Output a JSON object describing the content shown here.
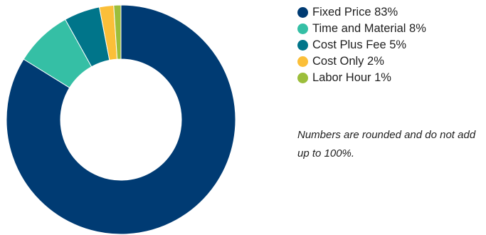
{
  "chart_data": {
    "type": "pie",
    "variant": "donut",
    "start": "top, clockwise",
    "series": [
      {
        "name": "",
        "values": [
          {
            "label": "Fixed Price 83%",
            "category": "Fixed Price",
            "value": 83,
            "color": "#003b73"
          },
          {
            "label": "Time and Material 8%",
            "category": "Time and Material",
            "value": 8,
            "color": "#35bfa5"
          },
          {
            "label": "Cost Plus Fee 5%",
            "category": "Cost Plus Fee",
            "value": 5,
            "color": "#00758a"
          },
          {
            "label": "Cost Only 2%",
            "category": "Cost Only",
            "value": 2,
            "color": "#fbbf39"
          },
          {
            "label": "Labor Hour 1%",
            "category": "Labor Hour",
            "value": 1,
            "color": "#9cbe3b"
          }
        ]
      }
    ],
    "legend_position": "right",
    "note": "Numbers are rounded and do not add up to 100%."
  }
}
